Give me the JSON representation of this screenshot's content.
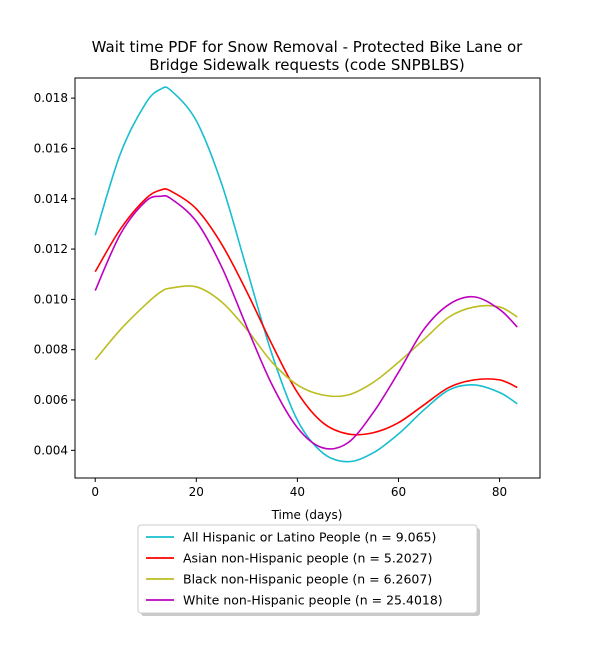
{
  "chart_data": {
    "type": "line",
    "title_line1": "Wait time PDF for Snow Removal - Protected Bike Lane or",
    "title_line2": "Bridge Sidewalk  requests (code SNPBLBS)",
    "xlabel": "Time (days)",
    "ylabel": "",
    "xlim": [
      -4,
      88
    ],
    "ylim": [
      0.0029,
      0.0188
    ],
    "xticks": [
      0,
      20,
      40,
      60,
      80
    ],
    "yticks": [
      0.004,
      0.006,
      0.008,
      0.01,
      0.012,
      0.014,
      0.016,
      0.018
    ],
    "ytick_labels": [
      "0.004",
      "0.006",
      "0.008",
      "0.010",
      "0.012",
      "0.014",
      "0.016",
      "0.018"
    ],
    "legend_position": "below plot, centered",
    "grid": false,
    "x": [
      0,
      5,
      10,
      13,
      15,
      20,
      25,
      30,
      35,
      40,
      45,
      50,
      55,
      60,
      65,
      70,
      75,
      80,
      83.5
    ],
    "series": [
      {
        "name": "All Hispanic or Latino People (n = 9.065)",
        "color": "#17becf",
        "values": [
          0.01255,
          0.0158,
          0.0178,
          0.01836,
          0.0183,
          0.0171,
          0.0146,
          0.0112,
          0.0078,
          0.0052,
          0.0039,
          0.00355,
          0.0039,
          0.00465,
          0.0056,
          0.0064,
          0.0066,
          0.0063,
          0.00585
        ]
      },
      {
        "name": "Asian non-Hispanic people (n = 5.2027)",
        "color": "#ff0000",
        "values": [
          0.0111,
          0.0128,
          0.014,
          0.01435,
          0.0143,
          0.0136,
          0.0122,
          0.0103,
          0.0082,
          0.0063,
          0.0051,
          0.00465,
          0.0047,
          0.0051,
          0.0058,
          0.0065,
          0.0068,
          0.0068,
          0.0065
        ]
      },
      {
        "name": "Black non-Hispanic people (n = 6.2607)",
        "color": "#bcbd22",
        "values": [
          0.0076,
          0.0088,
          0.0098,
          0.0103,
          0.01045,
          0.0105,
          0.0099,
          0.0088,
          0.0075,
          0.0066,
          0.0062,
          0.0062,
          0.0067,
          0.0075,
          0.0084,
          0.0093,
          0.0097,
          0.0097,
          0.0093
        ]
      },
      {
        "name": "White non-Hispanic people (n = 25.4018)",
        "color": "#bf00bf",
        "values": [
          0.01035,
          0.0126,
          0.0139,
          0.0141,
          0.014,
          0.0131,
          0.0113,
          0.0089,
          0.0066,
          0.0049,
          0.0041,
          0.0043,
          0.0055,
          0.0071,
          0.0088,
          0.0098,
          0.0101,
          0.0096,
          0.0089
        ]
      }
    ]
  }
}
